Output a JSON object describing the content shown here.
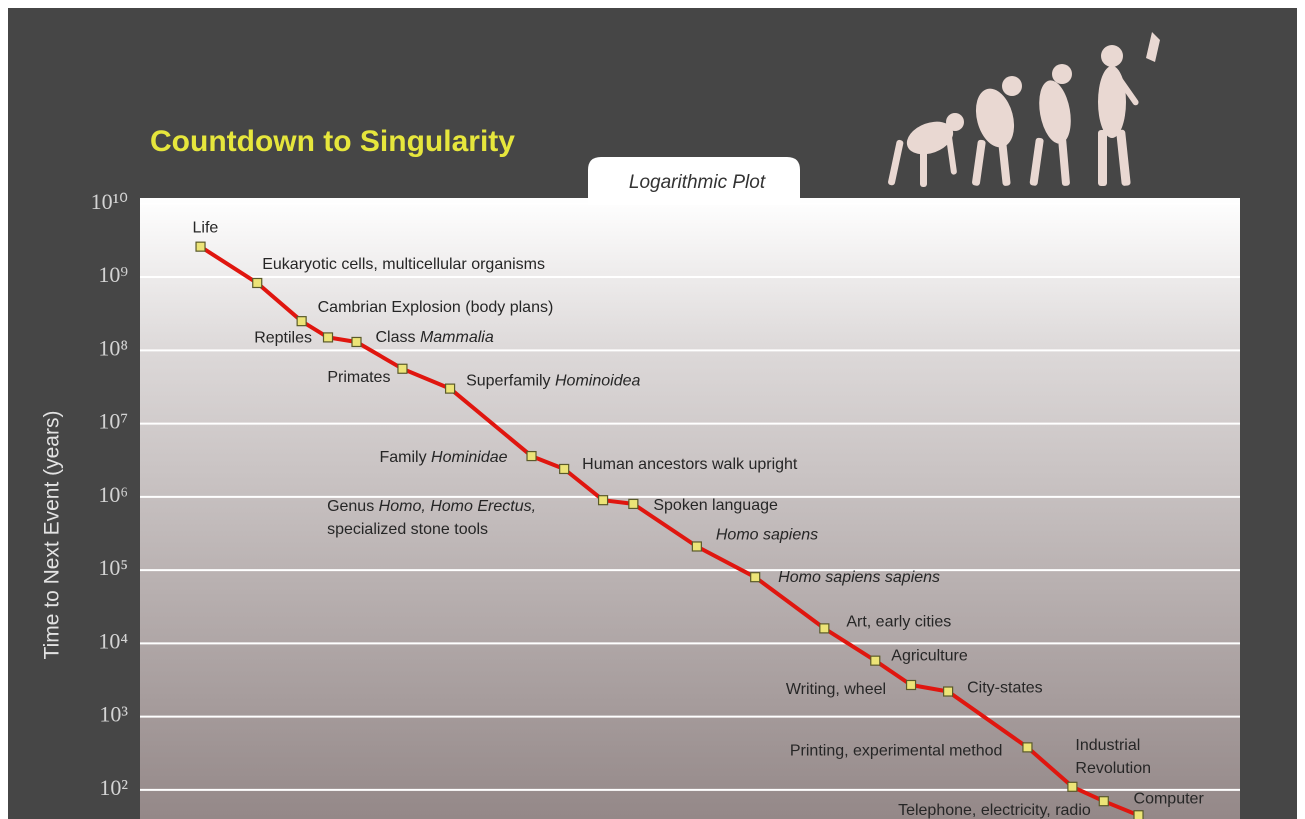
{
  "chart_data": {
    "type": "line",
    "title": "Countdown to Singularity",
    "subtitle": "Logarithmic Plot",
    "y_label": "Time to Next Event (years)",
    "x_log": true,
    "y_log": true,
    "grid": true,
    "color": "#e0160f",
    "marker_color": "#ece477",
    "xlim": [
      12600000000,
      7
    ],
    "ylim": [
      40,
      12000000000
    ],
    "yticks": [
      {
        "value": 100,
        "label": "10²"
      },
      {
        "value": 1000,
        "label": "10³"
      },
      {
        "value": 10000,
        "label": "10⁴"
      },
      {
        "value": 100000,
        "label": "10⁵"
      },
      {
        "value": 1000000,
        "label": "10⁶"
      },
      {
        "value": 10000000,
        "label": "10⁷"
      },
      {
        "value": 100000000,
        "label": "10⁸"
      },
      {
        "value": 1000000000,
        "label": "10⁹"
      },
      {
        "value": 10000000000,
        "label": "10¹⁰"
      }
    ],
    "x": [
      3900000000,
      1300000000,
      550000000,
      330000000,
      190000000,
      78000000,
      31000000,
      6400000,
      3400000,
      1600000,
      890000,
      260000,
      84000,
      22000,
      8200,
      4100,
      2000,
      430,
      180,
      98,
      50
    ],
    "values": [
      2600000000,
      830000000,
      250000000,
      150000000,
      130000000,
      56000000,
      30000000,
      3600000,
      2400000,
      900000,
      800000,
      210000,
      80000,
      16000,
      5800,
      2700,
      2200,
      380,
      110,
      70,
      45
    ],
    "point_labels": [
      [
        [
          {
            "text": "Life",
            "italic": false
          }
        ]
      ],
      [
        [
          {
            "text": "Eukaryotic cells, multicellular organisms",
            "italic": false
          }
        ]
      ],
      [
        [
          {
            "text": "Cambrian Explosion (body plans)",
            "italic": false
          }
        ]
      ],
      [
        [
          {
            "text": "Reptiles",
            "italic": false
          }
        ]
      ],
      [
        [
          {
            "text": "Class ",
            "italic": false
          },
          {
            "text": "Mammalia",
            "italic": true
          }
        ]
      ],
      [
        [
          {
            "text": "Primates",
            "italic": false
          }
        ]
      ],
      [
        [
          {
            "text": "Superfamily ",
            "italic": false
          },
          {
            "text": "Hominoidea",
            "italic": true
          }
        ]
      ],
      [
        [
          {
            "text": "Family ",
            "italic": false
          },
          {
            "text": "Hominidae",
            "italic": true
          }
        ]
      ],
      [
        [
          {
            "text": "Human ancestors walk upright",
            "italic": false
          }
        ]
      ],
      [
        [
          {
            "text": "Genus ",
            "italic": false
          },
          {
            "text": "Homo, Homo Erectus,",
            "italic": true
          }
        ],
        [
          {
            "text": "specialized stone tools",
            "italic": false
          }
        ]
      ],
      [
        [
          {
            "text": "Spoken language",
            "italic": false
          }
        ]
      ],
      [
        [
          {
            "text": "Homo sapiens",
            "italic": true
          }
        ]
      ],
      [
        [
          {
            "text": "Homo sapiens sapiens",
            "italic": true
          }
        ]
      ],
      [
        [
          {
            "text": "Art, early cities",
            "italic": false
          }
        ]
      ],
      [
        [
          {
            "text": "Agriculture",
            "italic": false
          }
        ]
      ],
      [
        [
          {
            "text": "Writing, wheel",
            "italic": false
          }
        ]
      ],
      [
        [
          {
            "text": "City-states",
            "italic": false
          }
        ]
      ],
      [
        [
          {
            "text": "Printing, experimental method",
            "italic": false
          }
        ]
      ],
      [
        [
          {
            "text": "Industrial",
            "italic": false
          }
        ],
        [
          {
            "text": "Revolution",
            "italic": false
          }
        ]
      ],
      [
        [
          {
            "text": "Telephone,  electricity, radio",
            "italic": false
          }
        ]
      ],
      [
        [
          {
            "text": "Computer",
            "italic": false
          }
        ]
      ]
    ]
  }
}
